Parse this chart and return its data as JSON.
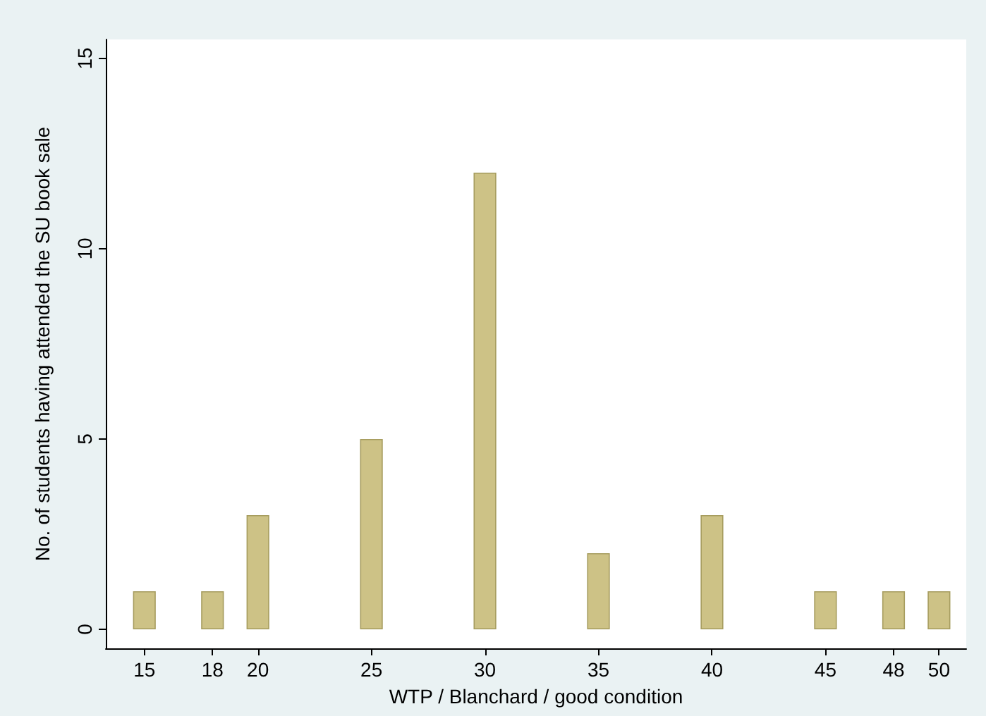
{
  "chart_data": {
    "type": "bar",
    "xlabel": "WTP / Blanchard / good condition",
    "ylabel": "No. of students having attended the SU book sale",
    "x": [
      15,
      18,
      20,
      25,
      30,
      35,
      40,
      45,
      48,
      50
    ],
    "values": [
      1,
      1,
      3,
      5,
      12,
      2,
      3,
      1,
      1,
      1
    ],
    "color": "#cdc286",
    "xlim": [
      13.3,
      51.2
    ],
    "xticks": [
      15,
      18,
      20,
      25,
      30,
      35,
      40,
      45,
      48,
      50
    ],
    "ylim": [
      -0.5,
      15.5
    ],
    "yticks": [
      0,
      5,
      10,
      15
    ],
    "grid": false
  }
}
